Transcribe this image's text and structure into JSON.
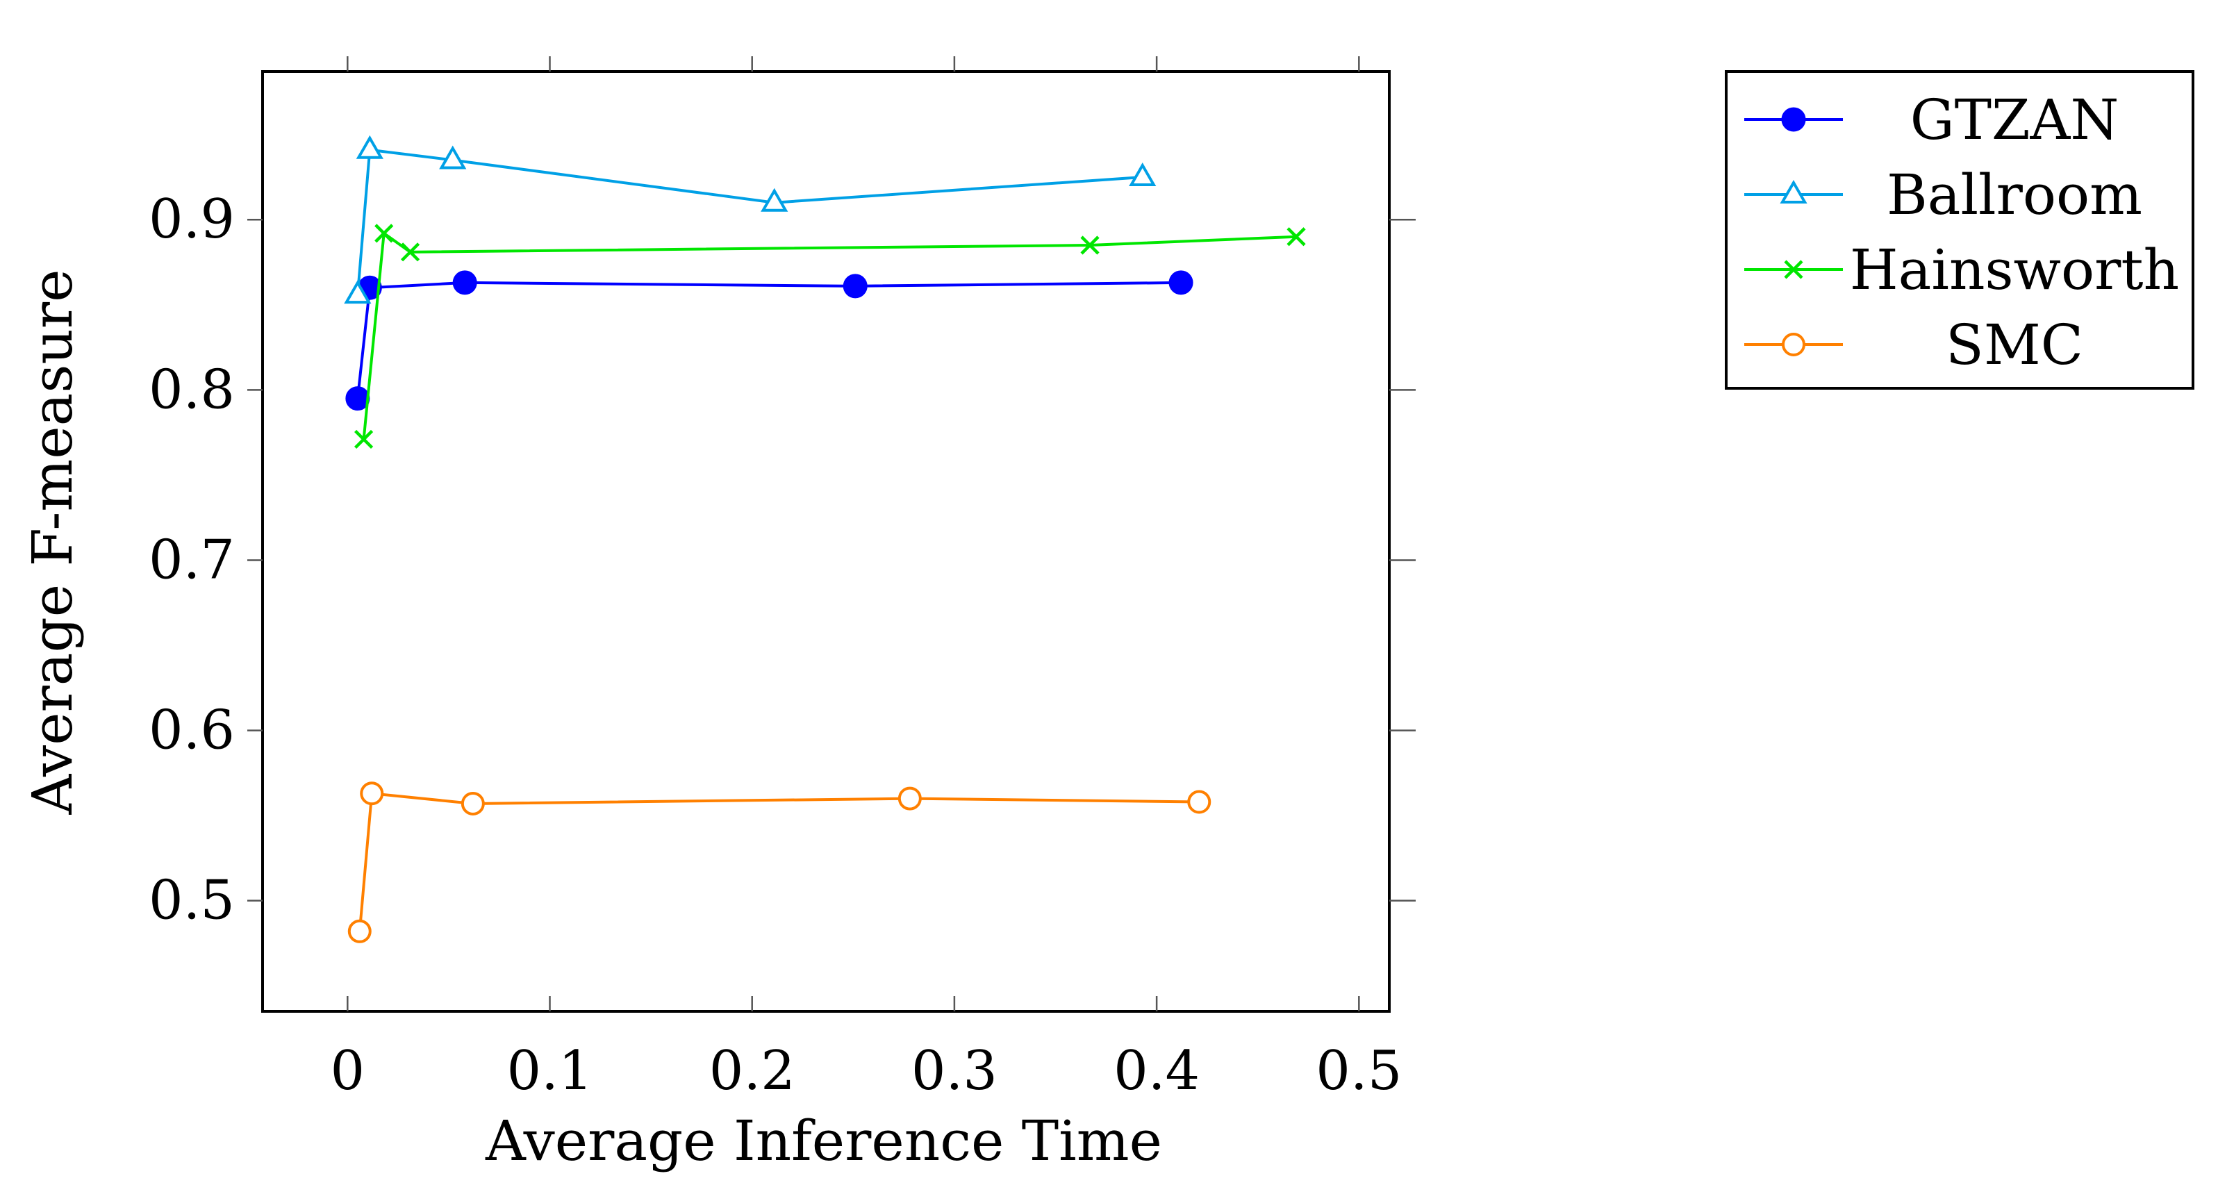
{
  "chart_data": {
    "type": "line",
    "title": "",
    "xlabel": "Average Inference Time",
    "ylabel": "Average F-measure",
    "xlim": [
      -0.042,
      0.515
    ],
    "ylim": [
      0.435,
      0.987
    ],
    "xticks": [
      0,
      0.1,
      0.2,
      0.3,
      0.4,
      0.5
    ],
    "xtick_labels": [
      "0",
      "0.1",
      "0.2",
      "0.3",
      "0.4",
      "0.5"
    ],
    "yticks": [
      0.5,
      0.6,
      0.7,
      0.8,
      0.9
    ],
    "ytick_labels": [
      "0.5",
      "0.6",
      "0.7",
      "0.8",
      "0.9"
    ],
    "grid": false,
    "legend_position": "outside-right-top",
    "series": [
      {
        "name": "GTZAN",
        "color": "#0000ff",
        "marker": "filled-circle",
        "x": [
          0.005,
          0.011,
          0.058,
          0.251,
          0.412
        ],
        "y": [
          0.795,
          0.86,
          0.863,
          0.861,
          0.863
        ]
      },
      {
        "name": "Ballroom",
        "color": "#00a0e6",
        "marker": "open-triangle",
        "x": [
          0.005,
          0.011,
          0.052,
          0.211,
          0.393
        ],
        "y": [
          0.856,
          0.941,
          0.935,
          0.91,
          0.925
        ]
      },
      {
        "name": "Hainsworth",
        "color": "#00e600",
        "marker": "x",
        "x": [
          0.008,
          0.018,
          0.031,
          0.367,
          0.469
        ],
        "y": [
          0.771,
          0.892,
          0.881,
          0.885,
          0.89
        ]
      },
      {
        "name": "SMC",
        "color": "#ff8000",
        "marker": "open-circle",
        "x": [
          0.006,
          0.012,
          0.062,
          0.278,
          0.421
        ],
        "y": [
          0.482,
          0.563,
          0.557,
          0.56,
          0.558
        ]
      }
    ]
  }
}
